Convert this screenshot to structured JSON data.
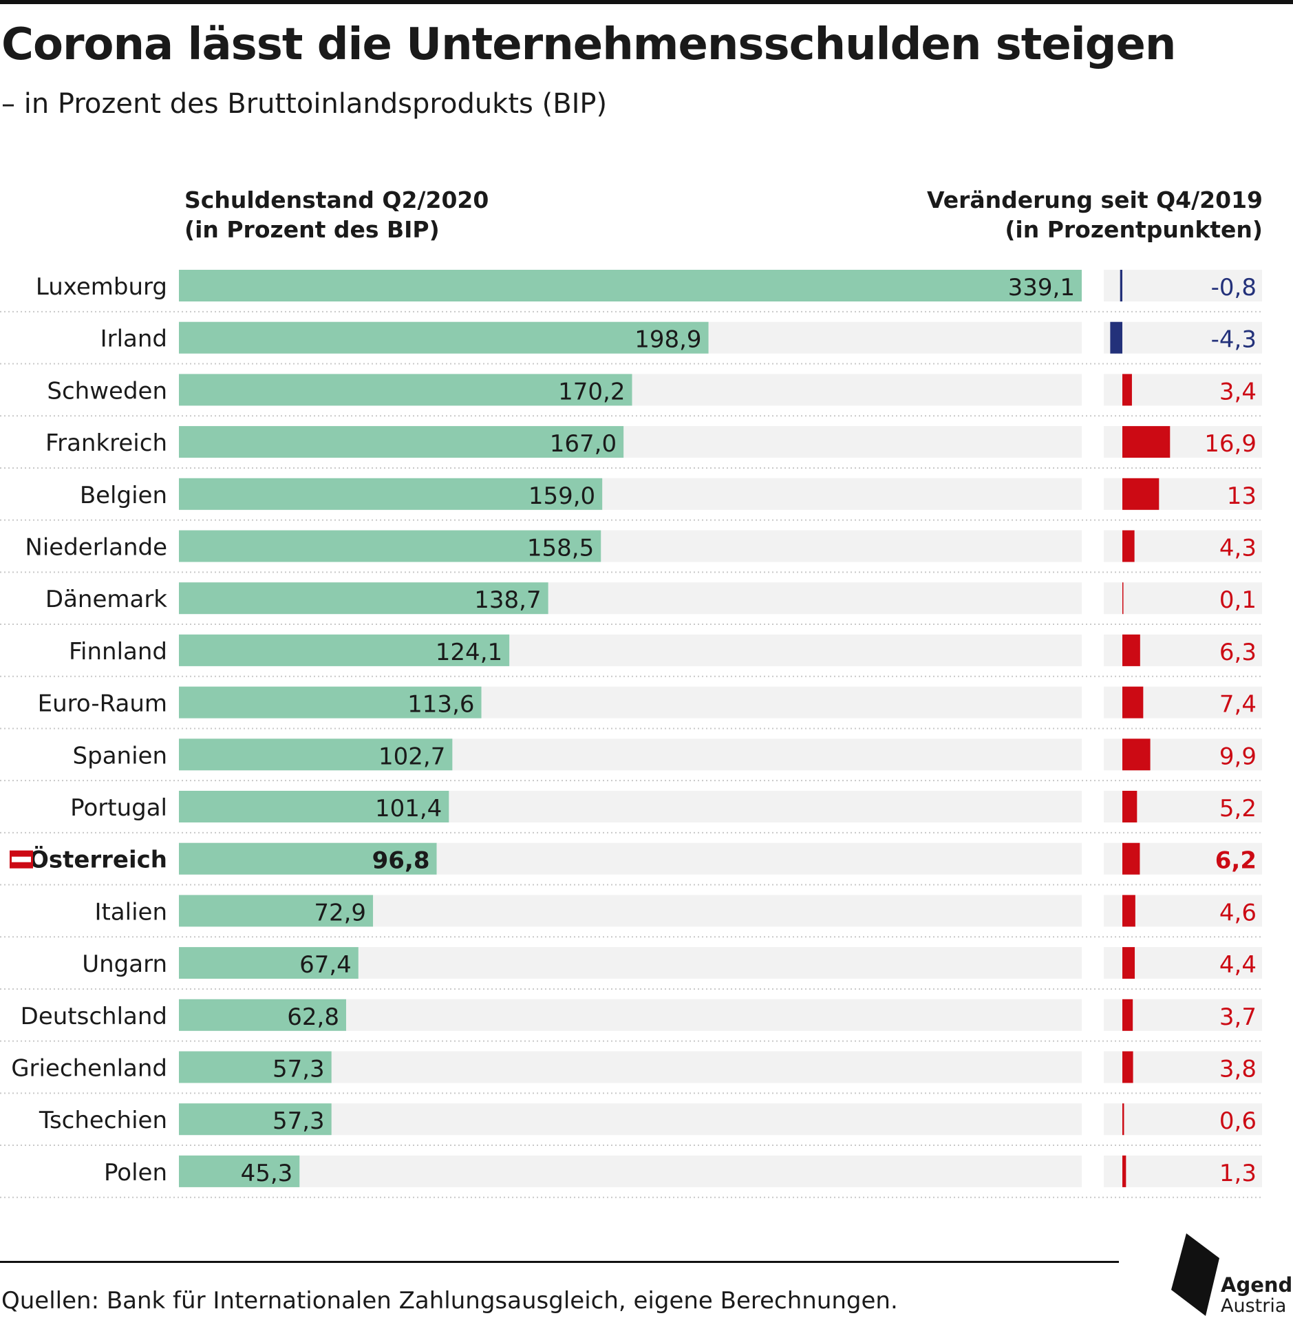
{
  "title": "Corona lässt die Unternehmensschulden steigen",
  "subtitle": "– in Prozent des Bruttoinlandsprodukts (BIP)",
  "left_header": [
    "Schuldenstand Q2/2020",
    "(in Prozent des BIP)"
  ],
  "right_header": [
    "Veränderung seit Q4/2019",
    "(in Prozentpunkten)"
  ],
  "source": "Quellen: Bank für Internationalen Zahlungsausgleich, eigene Berechnungen.",
  "logo": {
    "name": "Agenda",
    "sub": "Austria"
  },
  "colors": {
    "debt_bar": "#8dcbae",
    "track": "#f2f2f2",
    "positive": "#cc0a14",
    "negative": "#23317a",
    "text": "#1a1a1a"
  },
  "chart_data": {
    "type": "bar",
    "orientation": "horizontal",
    "categories": [
      "Luxemburg",
      "Irland",
      "Schweden",
      "Frankreich",
      "Belgien",
      "Niederlande",
      "Dänemark",
      "Finnland",
      "Euro-Raum",
      "Spanien",
      "Portugal",
      "Österreich",
      "Italien",
      "Ungarn",
      "Deutschland",
      "Griechenland",
      "Tschechien",
      "Polen"
    ],
    "highlight": "Österreich",
    "series": [
      {
        "name": "Schuldenstand Q2/2020",
        "values": [
          339.1,
          198.9,
          170.2,
          167.0,
          159.0,
          158.5,
          138.7,
          124.1,
          113.6,
          102.7,
          101.4,
          96.8,
          72.9,
          67.4,
          62.8,
          57.3,
          57.3,
          45.3
        ],
        "labels": [
          "339,1",
          "198,9",
          "170,2",
          "167,0",
          "159,0",
          "158,5",
          "138,7",
          "124,1",
          "113,6",
          "102,7",
          "101,4",
          "96,8",
          "72,9",
          "67,4",
          "62,8",
          "57,3",
          "57,3",
          "45,3"
        ],
        "xlim": [
          0,
          339.1
        ]
      },
      {
        "name": "Veränderung seit Q4/2019",
        "values": [
          -0.8,
          -4.3,
          3.4,
          16.9,
          13,
          4.3,
          0.1,
          6.3,
          7.4,
          9.9,
          5.2,
          6.2,
          4.6,
          4.4,
          3.7,
          3.8,
          0.6,
          1.3
        ],
        "labels": [
          "-0,8",
          "-4,3",
          "3,4",
          "16,9",
          "13",
          "4,3",
          "0,1",
          "6,3",
          "7,4",
          "9,9",
          "5,2",
          "6,2",
          "4,6",
          "4,4",
          "3,7",
          "3,8",
          "0,6",
          "1,3"
        ]
      }
    ]
  }
}
